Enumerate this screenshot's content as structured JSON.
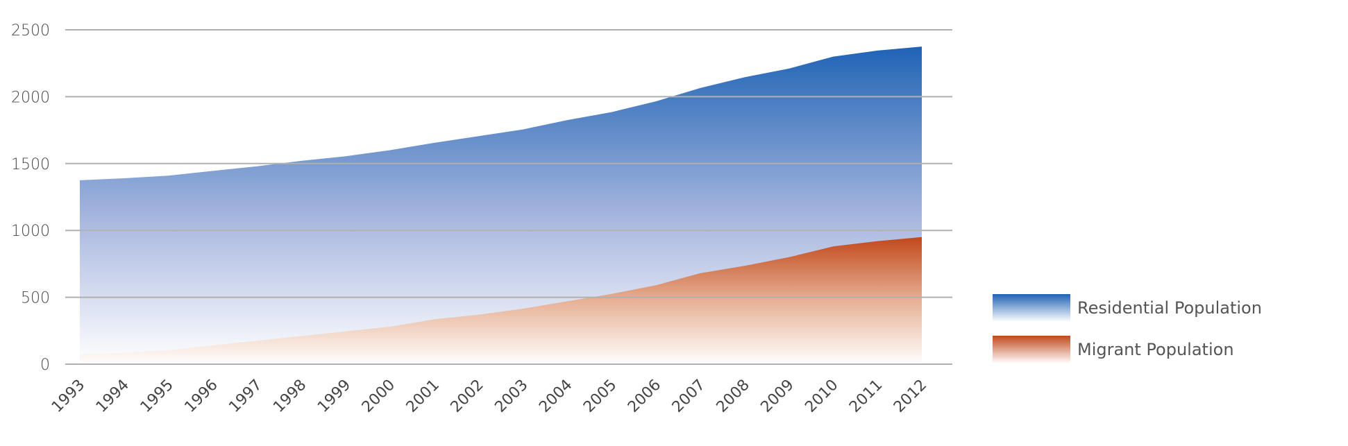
{
  "chart_data": {
    "type": "area",
    "title": "",
    "xlabel": "",
    "ylabel": "",
    "x": [
      "1993",
      "1994",
      "1995",
      "1996",
      "1997",
      "1998",
      "1999",
      "2000",
      "2001",
      "2002",
      "2003",
      "2004",
      "2005",
      "2006",
      "2007",
      "2008",
      "2009",
      "2010",
      "2011",
      "2012"
    ],
    "ylim": [
      0,
      2500
    ],
    "yticks": [
      0,
      500,
      1000,
      1500,
      2000,
      2500
    ],
    "grid": true,
    "legend_position": "right",
    "series": [
      {
        "name": "Residential Population",
        "color": "#2a6ab8",
        "values": [
          1375,
          1390,
          1410,
          1445,
          1480,
          1520,
          1555,
          1600,
          1655,
          1705,
          1755,
          1825,
          1885,
          1965,
          2065,
          2145,
          2210,
          2300,
          2345,
          2375
        ]
      },
      {
        "name": "Migrant Population",
        "color": "#c4552a",
        "values": [
          75,
          85,
          105,
          140,
          175,
          210,
          245,
          280,
          335,
          370,
          415,
          470,
          525,
          590,
          680,
          735,
          800,
          880,
          920,
          950
        ]
      }
    ]
  }
}
